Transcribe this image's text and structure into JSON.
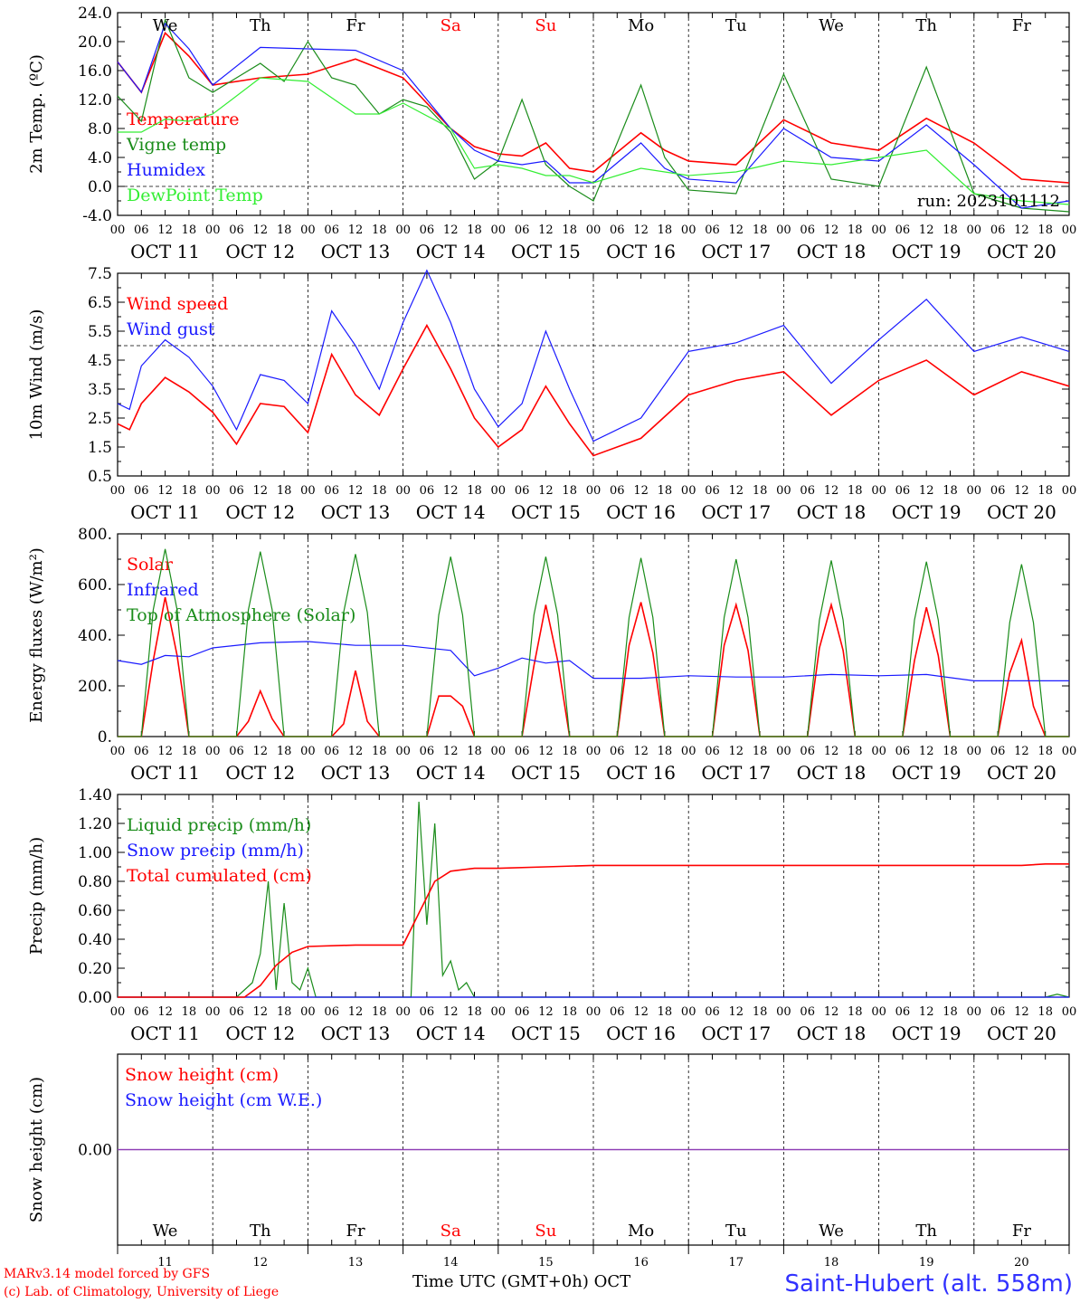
{
  "colors": {
    "red": "#ff0000",
    "green": "#1a8c1a",
    "blue": "#1a1aff",
    "light_green": "#33ee33",
    "purple": "#8c3cb4"
  },
  "time_axis": {
    "hour_ticks": [
      "00",
      "06",
      "12",
      "18"
    ],
    "date_labels": [
      "OCT 11",
      "OCT 12",
      "OCT 13",
      "OCT 14",
      "OCT 15",
      "OCT 16",
      "OCT 17",
      "OCT 18",
      "OCT 19",
      "OCT 20"
    ],
    "day_names": [
      "We",
      "Th",
      "Fr",
      "Sa",
      "Su",
      "Mo",
      "Tu",
      "We",
      "Th",
      "Fr"
    ],
    "day_name_colors": [
      "#000000",
      "#000000",
      "#000000",
      "#ff0000",
      "#ff0000",
      "#000000",
      "#000000",
      "#000000",
      "#000000",
      "#000000"
    ],
    "day_numbers": [
      "11",
      "12",
      "13",
      "14",
      "15",
      "16",
      "17",
      "18",
      "19",
      "20"
    ],
    "xlabel": "Time UTC (GMT+0h)",
    "month": "OCT"
  },
  "footer": {
    "model_note": "MARv3.14 model forced by GFS",
    "copyright": "(c) Lab. of Climatology, University of Liege",
    "station": "Saint-Hubert (alt. 558m)"
  },
  "chart_data": [
    {
      "type": "line",
      "ylabel": "2m Temp. (ºC)",
      "ylim": [
        -4,
        24
      ],
      "yticks": [
        "-4.0",
        "0.0",
        "4.0",
        "8.0",
        "12.0",
        "16.0",
        "20.0",
        "24.0"
      ],
      "ytick_values": [
        -4,
        0,
        4,
        8,
        12,
        16,
        20,
        24
      ],
      "reference_line": 0,
      "annotation": "run: 2023101112",
      "series": [
        {
          "name": "Temperature",
          "color": "#ff0000",
          "x": [
            0,
            6,
            12,
            18,
            24,
            36,
            48,
            60,
            72,
            84,
            90,
            96,
            102,
            108,
            114,
            120,
            132,
            138,
            144,
            156,
            168,
            180,
            192,
            204,
            216,
            228,
            240
          ],
          "values": [
            17.2,
            13,
            21.2,
            18,
            14,
            15,
            15.5,
            17.6,
            15,
            8,
            5.5,
            4.5,
            4.2,
            6,
            2.5,
            2,
            7.4,
            5,
            3.5,
            3,
            9.2,
            6,
            5,
            9.4,
            6,
            1,
            0.5
          ]
        },
        {
          "name": "Vigne temp",
          "color": "#1a8c1a",
          "x": [
            0,
            6,
            12,
            18,
            24,
            36,
            42,
            48,
            54,
            60,
            66,
            72,
            78,
            84,
            90,
            96,
            102,
            108,
            114,
            120,
            132,
            138,
            144,
            156,
            168,
            180,
            192,
            204,
            216,
            228,
            240
          ],
          "values": [
            12.5,
            9,
            23,
            15,
            13,
            17,
            14.5,
            20,
            15,
            14,
            10,
            12,
            11,
            7.5,
            1,
            3.5,
            12,
            3,
            0,
            -2,
            14,
            4,
            -0.5,
            -1,
            15.5,
            1,
            0,
            16.5,
            -1,
            -3,
            -3.5
          ]
        },
        {
          "name": "Humidex",
          "color": "#1a1aff",
          "x": [
            0,
            6,
            12,
            18,
            24,
            36,
            48,
            60,
            72,
            84,
            90,
            96,
            102,
            108,
            114,
            120,
            132,
            138,
            144,
            156,
            168,
            180,
            192,
            204,
            216,
            228,
            240
          ],
          "values": [
            17.2,
            13,
            22.5,
            19,
            14,
            19.2,
            19,
            18.8,
            16,
            8,
            5,
            3.5,
            3,
            3.5,
            0.5,
            0.5,
            6,
            2.5,
            1,
            0.5,
            8,
            4,
            3.5,
            8.5,
            3,
            -3,
            -2
          ]
        },
        {
          "name": "DewPoint Temp",
          "color": "#33ee33",
          "x": [
            0,
            6,
            12,
            18,
            24,
            36,
            48,
            60,
            66,
            72,
            84,
            90,
            96,
            102,
            108,
            114,
            120,
            132,
            144,
            156,
            168,
            180,
            192,
            204,
            216,
            228,
            240
          ],
          "values": [
            7.5,
            7.5,
            9.3,
            9,
            10,
            15,
            14.5,
            10,
            10,
            11.5,
            8,
            2.5,
            3,
            2.5,
            1.5,
            1.5,
            0.5,
            2.5,
            1.5,
            2,
            3.5,
            3,
            4,
            5,
            -1,
            -2,
            -2.5
          ]
        }
      ]
    },
    {
      "type": "line",
      "ylabel": "10m Wind (m/s)",
      "ylim": [
        0.5,
        7.5
      ],
      "yticks": [
        "0.5",
        "1.5",
        "2.5",
        "3.5",
        "4.5",
        "5.5",
        "6.5",
        "7.5"
      ],
      "ytick_values": [
        0.5,
        1.5,
        2.5,
        3.5,
        4.5,
        5.5,
        6.5,
        7.5
      ],
      "reference_line": 5,
      "series": [
        {
          "name": "Wind speed",
          "color": "#ff0000",
          "x": [
            0,
            3,
            6,
            12,
            18,
            24,
            30,
            36,
            42,
            48,
            54,
            60,
            66,
            72,
            78,
            84,
            90,
            96,
            102,
            108,
            114,
            120,
            132,
            144,
            156,
            168,
            180,
            192,
            204,
            216,
            228,
            240
          ],
          "values": [
            2.3,
            2.1,
            3,
            3.9,
            3.4,
            2.7,
            1.6,
            3,
            2.9,
            2,
            4.7,
            3.3,
            2.6,
            4.2,
            5.7,
            4.2,
            2.5,
            1.5,
            2.1,
            3.6,
            2.3,
            1.2,
            1.8,
            3.3,
            3.8,
            4.1,
            2.6,
            3.8,
            4.5,
            3.3,
            4.1,
            3.6
          ]
        },
        {
          "name": "Wind gust",
          "color": "#1a1aff",
          "x": [
            0,
            3,
            6,
            12,
            18,
            24,
            30,
            36,
            42,
            48,
            54,
            60,
            66,
            72,
            78,
            84,
            90,
            96,
            102,
            108,
            114,
            120,
            132,
            144,
            156,
            168,
            180,
            192,
            204,
            216,
            228,
            240
          ],
          "values": [
            3,
            2.8,
            4.3,
            5.2,
            4.6,
            3.6,
            2.1,
            4,
            3.8,
            3,
            6.2,
            5,
            3.5,
            5.8,
            7.6,
            5.8,
            3.5,
            2.2,
            3,
            5.5,
            3.5,
            1.7,
            2.5,
            4.8,
            5.1,
            5.7,
            3.7,
            5.2,
            6.6,
            4.8,
            5.3,
            4.8
          ]
        }
      ]
    },
    {
      "type": "line",
      "ylabel": "Energy fluxes (W/m²)",
      "ylim": [
        0,
        800
      ],
      "yticks": [
        "0.",
        "200.",
        "400.",
        "600.",
        "800."
      ],
      "ytick_values": [
        0,
        200,
        400,
        600,
        800
      ],
      "series": [
        {
          "name": "Solar",
          "color": "#ff0000",
          "x": [
            0,
            6,
            9,
            12,
            15,
            18,
            24,
            30,
            33,
            36,
            39,
            42,
            48,
            54,
            57,
            60,
            63,
            66,
            72,
            78,
            81,
            84,
            87,
            90,
            96,
            102,
            105,
            108,
            111,
            114,
            120,
            126,
            129,
            132,
            135,
            138,
            144,
            150,
            153,
            156,
            159,
            162,
            168,
            174,
            177,
            180,
            183,
            186,
            192,
            198,
            201,
            204,
            207,
            210,
            216,
            222,
            225,
            228,
            231,
            234,
            240
          ],
          "values": [
            0,
            0,
            300,
            550,
            320,
            0,
            0,
            0,
            60,
            180,
            70,
            0,
            0,
            0,
            50,
            260,
            60,
            0,
            0,
            0,
            160,
            160,
            120,
            0,
            0,
            0,
            280,
            520,
            300,
            0,
            0,
            0,
            360,
            530,
            330,
            0,
            0,
            0,
            360,
            520,
            340,
            0,
            0,
            0,
            350,
            520,
            340,
            0,
            0,
            0,
            300,
            510,
            320,
            0,
            0,
            0,
            250,
            380,
            120,
            0,
            0
          ]
        },
        {
          "name": "Infrared",
          "color": "#1a1aff",
          "x": [
            0,
            6,
            12,
            18,
            24,
            36,
            48,
            60,
            72,
            84,
            90,
            96,
            102,
            108,
            114,
            120,
            132,
            144,
            156,
            168,
            180,
            192,
            204,
            216,
            228,
            240
          ],
          "values": [
            300,
            285,
            320,
            315,
            350,
            370,
            375,
            360,
            360,
            340,
            240,
            270,
            310,
            290,
            300,
            230,
            230,
            240,
            235,
            235,
            245,
            240,
            245,
            220,
            220,
            220
          ]
        },
        {
          "name": "Top of Atmosphere (Solar)",
          "color": "#1a8c1a",
          "x": [
            0,
            6,
            9,
            12,
            15,
            18,
            24,
            30,
            33,
            36,
            39,
            42,
            48,
            54,
            57,
            60,
            63,
            66,
            72,
            78,
            81,
            84,
            87,
            90,
            96,
            102,
            105,
            108,
            111,
            114,
            120,
            126,
            129,
            132,
            135,
            138,
            144,
            150,
            153,
            156,
            159,
            162,
            168,
            174,
            177,
            180,
            183,
            186,
            192,
            198,
            201,
            204,
            207,
            210,
            216,
            222,
            225,
            228,
            231,
            234,
            240
          ],
          "values": [
            0,
            0,
            500,
            740,
            500,
            0,
            0,
            0,
            500,
            730,
            500,
            0,
            0,
            0,
            490,
            720,
            490,
            0,
            0,
            0,
            480,
            710,
            480,
            0,
            0,
            0,
            480,
            710,
            480,
            0,
            0,
            0,
            470,
            705,
            470,
            0,
            0,
            0,
            470,
            700,
            470,
            0,
            0,
            0,
            460,
            695,
            460,
            0,
            0,
            0,
            460,
            690,
            460,
            0,
            0,
            0,
            450,
            680,
            450,
            0,
            0
          ]
        }
      ]
    },
    {
      "type": "line",
      "ylabel": "Precip (mm/h)",
      "ylim": [
        0,
        1.4
      ],
      "yticks": [
        "0.00",
        "0.20",
        "0.40",
        "0.60",
        "0.80",
        "1.00",
        "1.20",
        "1.40"
      ],
      "ytick_values": [
        0,
        0.2,
        0.4,
        0.6,
        0.8,
        1,
        1.2,
        1.4
      ],
      "series": [
        {
          "name": "Liquid precip (mm/h)",
          "color": "#1a8c1a",
          "x": [
            0,
            30,
            34,
            36,
            38,
            40,
            42,
            44,
            46,
            48,
            50,
            54,
            74,
            76,
            78,
            80,
            82,
            84,
            86,
            88,
            90,
            120,
            234,
            237,
            240
          ],
          "values": [
            0,
            0,
            0.1,
            0.3,
            0.8,
            0.05,
            0.65,
            0.1,
            0.05,
            0.2,
            0,
            0,
            0,
            1.35,
            0.5,
            1.2,
            0.15,
            0.25,
            0.05,
            0.1,
            0,
            0,
            0,
            0.02,
            0
          ]
        },
        {
          "name": "Snow precip (mm/h)",
          "color": "#1a1aff",
          "x": [
            0,
            240
          ],
          "values": [
            0,
            0
          ]
        },
        {
          "name": "Total cumulated (cm)",
          "color": "#ff0000",
          "x": [
            0,
            32,
            36,
            40,
            44,
            48,
            60,
            72,
            76,
            80,
            84,
            90,
            96,
            108,
            120,
            168,
            228,
            234,
            240
          ],
          "values": [
            0,
            0,
            0.08,
            0.22,
            0.31,
            0.35,
            0.36,
            0.36,
            0.58,
            0.8,
            0.87,
            0.89,
            0.89,
            0.9,
            0.91,
            0.91,
            0.91,
            0.92,
            0.92
          ]
        }
      ]
    },
    {
      "type": "line",
      "ylabel": "Snow height (cm)",
      "ylim": [
        -1,
        1
      ],
      "yticks": [
        "0.00"
      ],
      "ytick_values": [
        0
      ],
      "series": [
        {
          "name": "Snow height (cm)",
          "color": "#ff0000",
          "x": [
            0,
            240
          ],
          "values": [
            0,
            0
          ]
        },
        {
          "name": "Snow height (cm W.E.)",
          "color": "#1a1aff",
          "x": [
            0,
            240
          ],
          "values": [
            0,
            0
          ]
        }
      ]
    }
  ]
}
